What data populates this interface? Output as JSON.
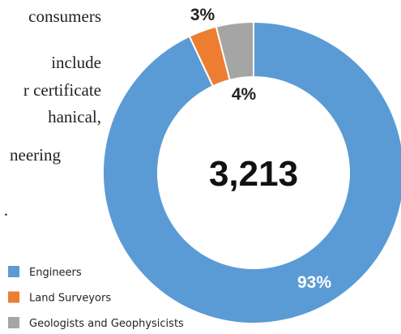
{
  "text_fragments": [
    "consumers",
    "include",
    "r certificate",
    "hanical,",
    "neering",
    "."
  ],
  "chart_data": {
    "type": "donut",
    "center_label": "3,213",
    "categories": [
      "Engineers",
      "Land Surveyors",
      "Geologists and Geophysicists"
    ],
    "values": [
      93,
      3,
      4
    ],
    "value_labels": [
      "93%",
      "3%",
      "4%"
    ],
    "colors": [
      "#5b9bd5",
      "#ed7d31",
      "#a5a5a5"
    ]
  }
}
